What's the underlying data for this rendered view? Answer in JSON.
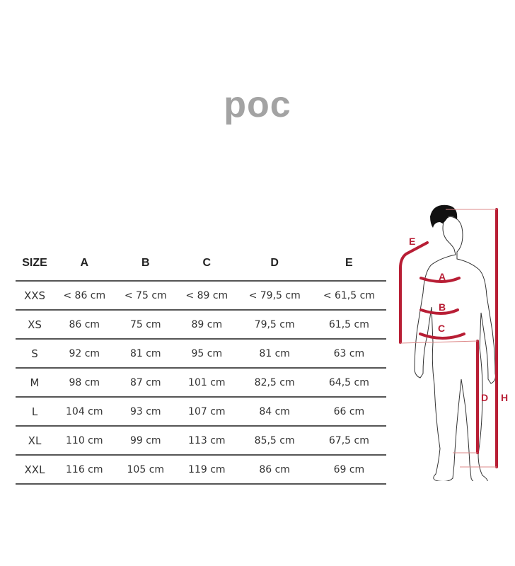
{
  "brand": {
    "logo_text": "poc",
    "logo_color": "#a3a3a3"
  },
  "size_table": {
    "headers": [
      "SIZE",
      "A",
      "B",
      "C",
      "D",
      "E"
    ],
    "rows": [
      [
        "XXS",
        "< 86 cm",
        "< 75 cm",
        "< 89 cm",
        "< 79,5 cm",
        "< 61,5 cm"
      ],
      [
        "XS",
        "86 cm",
        "75 cm",
        "89 cm",
        "79,5 cm",
        "61,5 cm"
      ],
      [
        "S",
        "92 cm",
        "81 cm",
        "95 cm",
        "81 cm",
        "63 cm"
      ],
      [
        "M",
        "98 cm",
        "87 cm",
        "101 cm",
        "82,5 cm",
        "64,5 cm"
      ],
      [
        "L",
        "104 cm",
        "93 cm",
        "107 cm",
        "84 cm",
        "66 cm"
      ],
      [
        "XL",
        "110 cm",
        "99 cm",
        "113 cm",
        "85,5 cm",
        "67,5 cm"
      ],
      [
        "XXL",
        "116 cm",
        "105 cm",
        "119 cm",
        "86 cm",
        "69 cm"
      ]
    ]
  },
  "figure": {
    "labels": {
      "a": "A",
      "b": "B",
      "c": "C",
      "d": "D",
      "e": "E",
      "h": "H"
    },
    "accent_color": "#b81e35"
  }
}
